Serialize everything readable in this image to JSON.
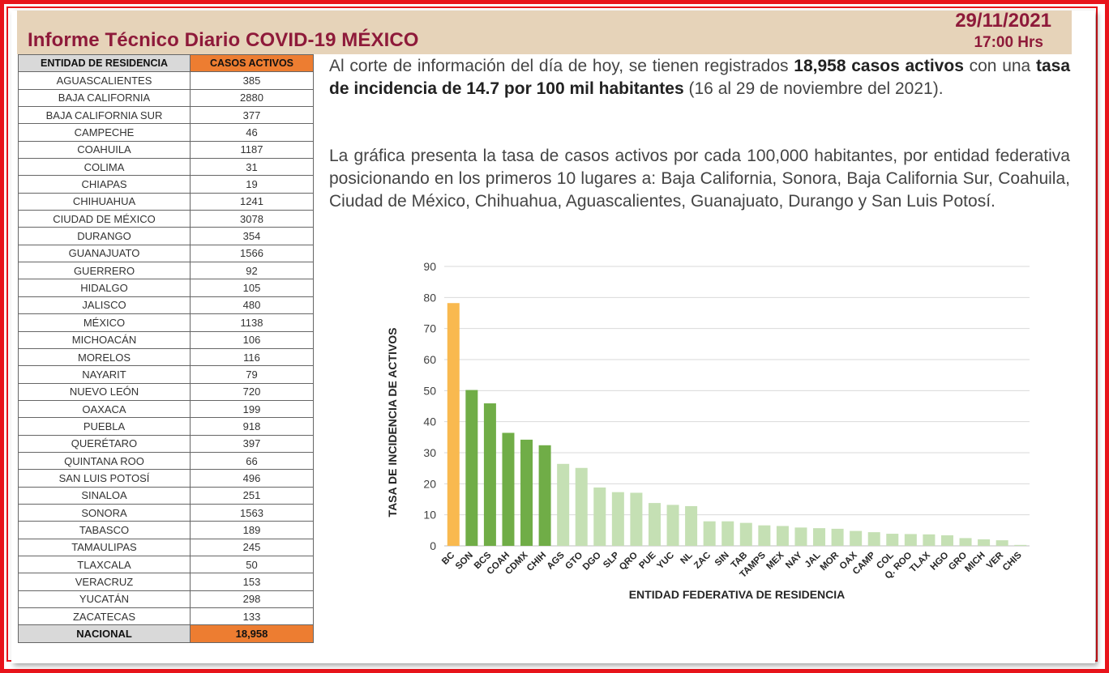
{
  "header": {
    "title": "Informe Técnico Diario COVID-19 MÉXICO",
    "date": "29/11/2021",
    "time": "17:00 Hrs"
  },
  "table": {
    "col_state": "ENTIDAD DE RESIDENCIA",
    "col_cases": "CASOS ACTIVOS",
    "rows": [
      {
        "state": "AGUASCALIENTES",
        "cases": "385"
      },
      {
        "state": "BAJA CALIFORNIA",
        "cases": "2880"
      },
      {
        "state": "BAJA CALIFORNIA SUR",
        "cases": "377"
      },
      {
        "state": "CAMPECHE",
        "cases": "46"
      },
      {
        "state": "COAHUILA",
        "cases": "1187"
      },
      {
        "state": "COLIMA",
        "cases": "31"
      },
      {
        "state": "CHIAPAS",
        "cases": "19"
      },
      {
        "state": "CHIHUAHUA",
        "cases": "1241"
      },
      {
        "state": "CIUDAD DE MÉXICO",
        "cases": "3078"
      },
      {
        "state": "DURANGO",
        "cases": "354"
      },
      {
        "state": "GUANAJUATO",
        "cases": "1566"
      },
      {
        "state": "GUERRERO",
        "cases": "92"
      },
      {
        "state": "HIDALGO",
        "cases": "105"
      },
      {
        "state": "JALISCO",
        "cases": "480"
      },
      {
        "state": "MÉXICO",
        "cases": "1138"
      },
      {
        "state": "MICHOACÁN",
        "cases": "106"
      },
      {
        "state": "MORELOS",
        "cases": "116"
      },
      {
        "state": "NAYARIT",
        "cases": "79"
      },
      {
        "state": "NUEVO LEÓN",
        "cases": "720"
      },
      {
        "state": "OAXACA",
        "cases": "199"
      },
      {
        "state": "PUEBLA",
        "cases": "918"
      },
      {
        "state": "QUERÉTARO",
        "cases": "397"
      },
      {
        "state": "QUINTANA ROO",
        "cases": "66"
      },
      {
        "state": "SAN LUIS POTOSÍ",
        "cases": "496"
      },
      {
        "state": "SINALOA",
        "cases": "251"
      },
      {
        "state": "SONORA",
        "cases": "1563"
      },
      {
        "state": "TABASCO",
        "cases": "189"
      },
      {
        "state": "TAMAULIPAS",
        "cases": "245"
      },
      {
        "state": "TLAXCALA",
        "cases": "50"
      },
      {
        "state": "VERACRUZ",
        "cases": "153"
      },
      {
        "state": "YUCATÁN",
        "cases": "298"
      },
      {
        "state": "ZACATECAS",
        "cases": "133"
      }
    ],
    "total_label": "NACIONAL",
    "total_value": "18,958"
  },
  "summary": {
    "p1_a": "Al corte de información del día de hoy, se tienen registrados ",
    "p1_b": "18,958 casos activos",
    "p1_c": " con una ",
    "p1_d": "tasa de incidencia de 14.7 por 100 mil habitantes",
    "p1_e": " (16 al 29 de noviembre del 2021).",
    "p2": "La gráfica presenta la tasa de casos activos por cada 100,000 habitantes, por entidad federativa posicionando en los primeros 10 lugares a: Baja California, Sonora, Baja California Sur, Coahuila, Ciudad de México, Chihuahua, Aguascalientes, Guanajuato, Durango y San Luis Potosí."
  },
  "colors": {
    "first": "#f9b94f",
    "top_group": "#70ad47",
    "rest": "#c5e0b4",
    "grid": "#d9d9d9"
  },
  "chart_data": {
    "type": "bar",
    "title": "",
    "xlabel": "ENTIDAD FEDERATIVA DE RESIDENCIA",
    "ylabel": "TASA DE INCIDENCIA DE ACTIVOS",
    "ylim": [
      0,
      90
    ],
    "yticks": [
      0,
      10,
      20,
      30,
      40,
      50,
      60,
      70,
      80,
      90
    ],
    "grid": true,
    "categories": [
      "BC",
      "SON",
      "BCS",
      "COAH",
      "CDMX",
      "CHIH",
      "AGS",
      "GTO",
      "DGO",
      "SLP",
      "QRO",
      "PUE",
      "YUC",
      "NL",
      "ZAC",
      "SIN",
      "TAB",
      "TAMPS",
      "MEX",
      "NAY",
      "JAL",
      "MOR",
      "OAX",
      "CAMP",
      "COL",
      "Q. ROO",
      "TLAX",
      "HGO",
      "GRO",
      "MICH",
      "VER",
      "CHIS"
    ],
    "values": [
      78.2,
      50.2,
      45.9,
      36.4,
      34.2,
      32.4,
      26.4,
      25.1,
      18.8,
      17.3,
      17.1,
      13.8,
      13.2,
      12.8,
      7.9,
      7.9,
      7.4,
      6.6,
      6.4,
      5.9,
      5.7,
      5.5,
      4.8,
      4.4,
      3.9,
      3.8,
      3.7,
      3.4,
      2.5,
      2.1,
      1.8,
      0.3
    ],
    "highlight": {
      "first": 1,
      "top_group": 6
    }
  }
}
